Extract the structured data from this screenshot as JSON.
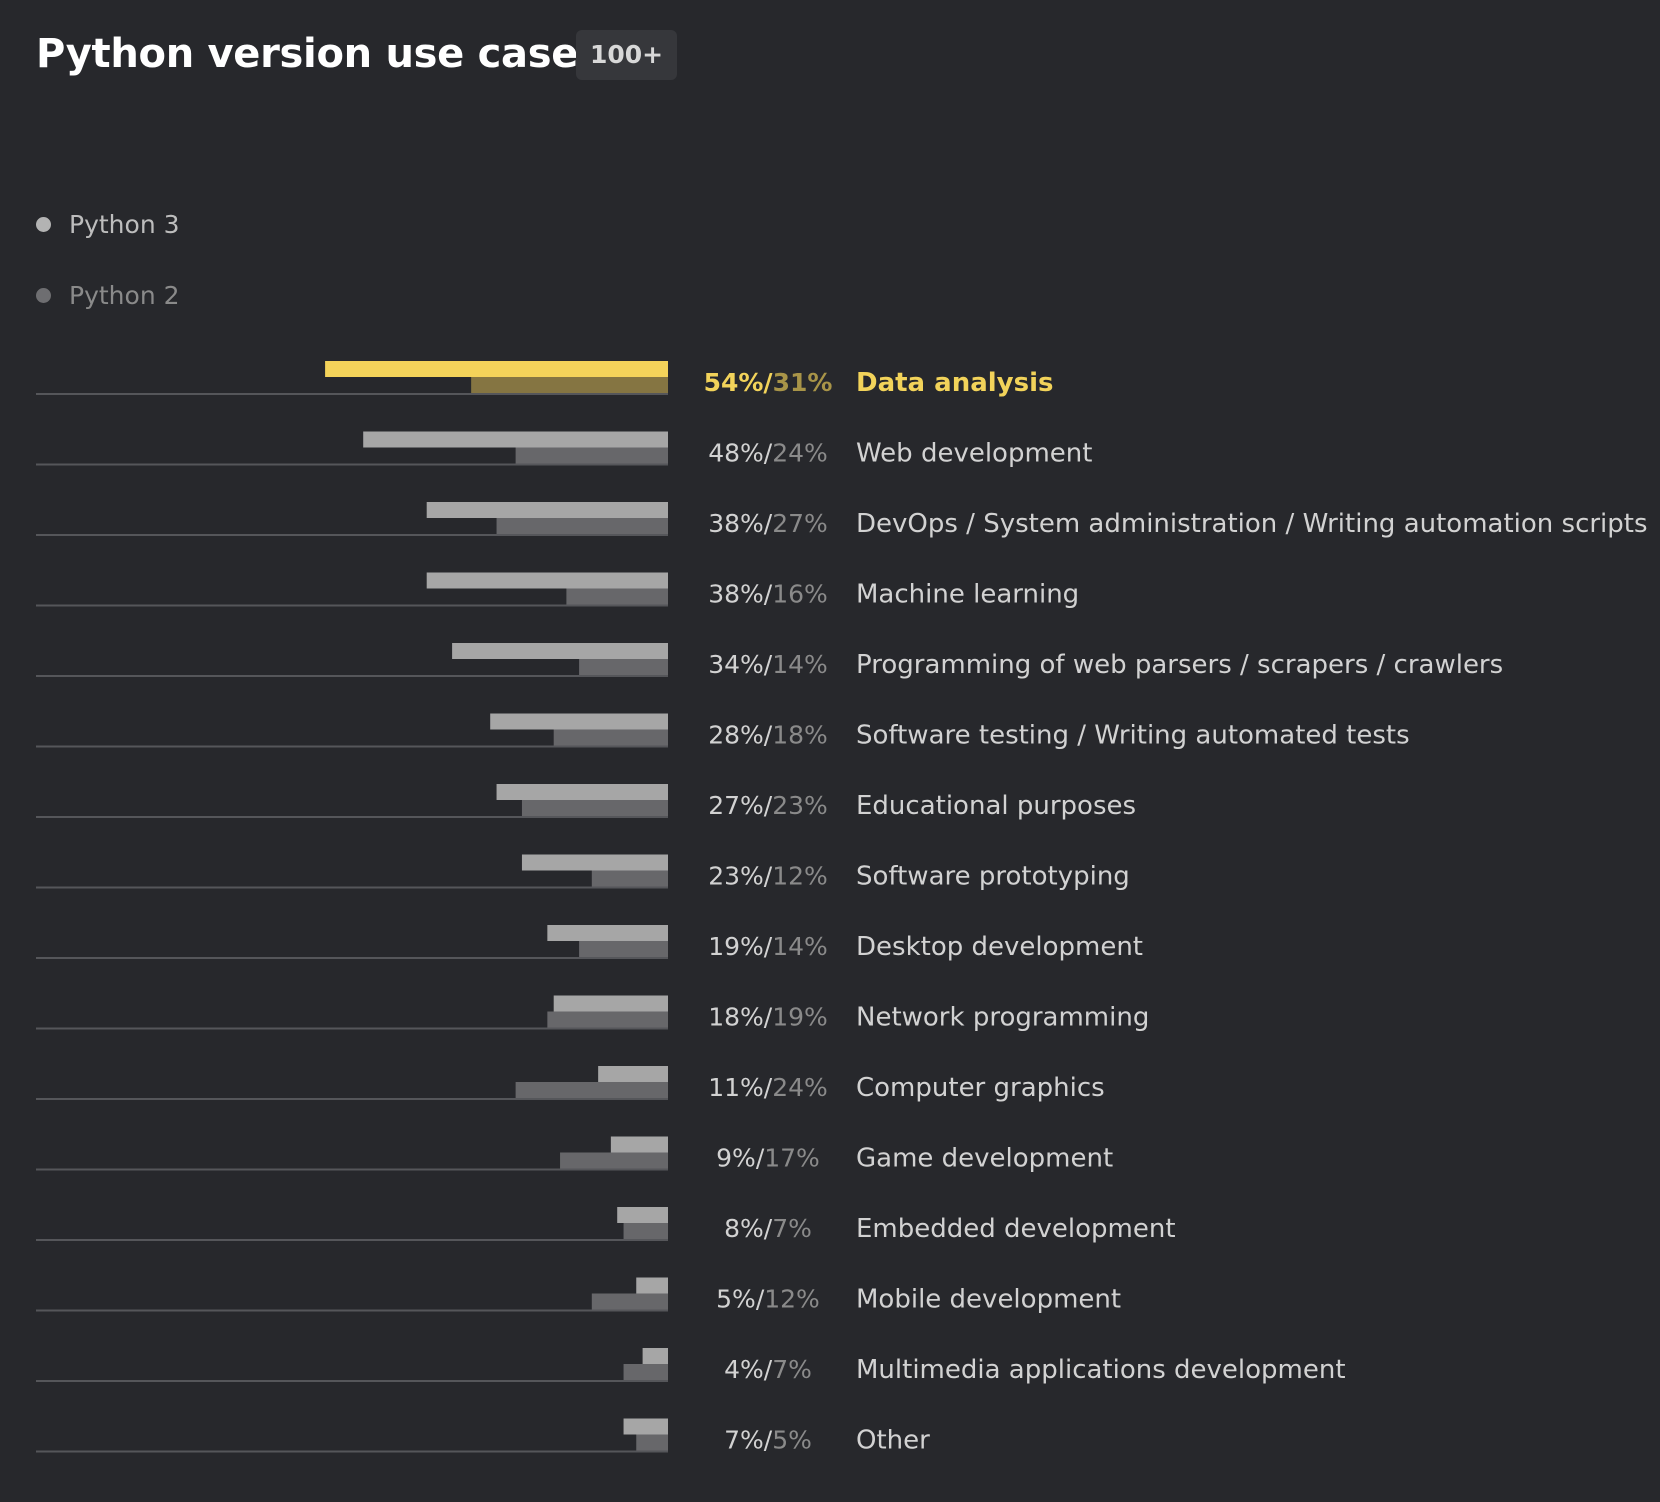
{
  "header": {
    "title": "Python version use cases",
    "badge": "100+"
  },
  "colors": {
    "background": "#27282c",
    "python3_bar": "#a6a6a6",
    "python2_bar": "#67676a",
    "highlight_python3_bar": "#f4d35a",
    "highlight_python2_bar": "#857542",
    "highlight_text": "#f2d35a",
    "highlight_text_secondary": "#a89448",
    "label_text": "#d2d2d2",
    "secondary_text": "#8a8a8a",
    "baseline": "#55565a"
  },
  "chart_data": {
    "type": "bar",
    "orientation": "horizontal",
    "title": "Python version use cases",
    "legend_placement": "top-left",
    "grid": false,
    "xlim": [
      0,
      100
    ],
    "highlighted_category": "Data analysis",
    "value_separator": "/",
    "categories": [
      "Data analysis",
      "Web development",
      "DevOps / System administration / Writing automation scripts",
      "Machine learning",
      "Programming of web parsers / scrapers / crawlers",
      "Software testing / Writing automated tests",
      "Educational purposes",
      "Software prototyping",
      "Desktop development",
      "Network programming",
      "Computer graphics",
      "Game development",
      "Embedded development",
      "Mobile development",
      "Multimedia applications development",
      "Other"
    ],
    "series": [
      {
        "name": "Python 3",
        "values": [
          54,
          48,
          38,
          38,
          34,
          28,
          27,
          23,
          19,
          18,
          11,
          9,
          8,
          5,
          4,
          7
        ],
        "labels": [
          "54%",
          "48%",
          "38%",
          "38%",
          "34%",
          "28%",
          "27%",
          "23%",
          "19%",
          "18%",
          "11%",
          "9%",
          "8%",
          "5%",
          "4%",
          "7%"
        ]
      },
      {
        "name": "Python 2",
        "values": [
          31,
          24,
          27,
          16,
          14,
          18,
          23,
          12,
          14,
          19,
          24,
          17,
          7,
          12,
          7,
          5
        ],
        "labels": [
          "31%",
          "24%",
          "27%",
          "16%",
          "14%",
          "18%",
          "23%",
          "12%",
          "14%",
          "19%",
          "24%",
          "17%",
          "7%",
          "12%",
          "7%",
          "5%"
        ]
      }
    ]
  }
}
